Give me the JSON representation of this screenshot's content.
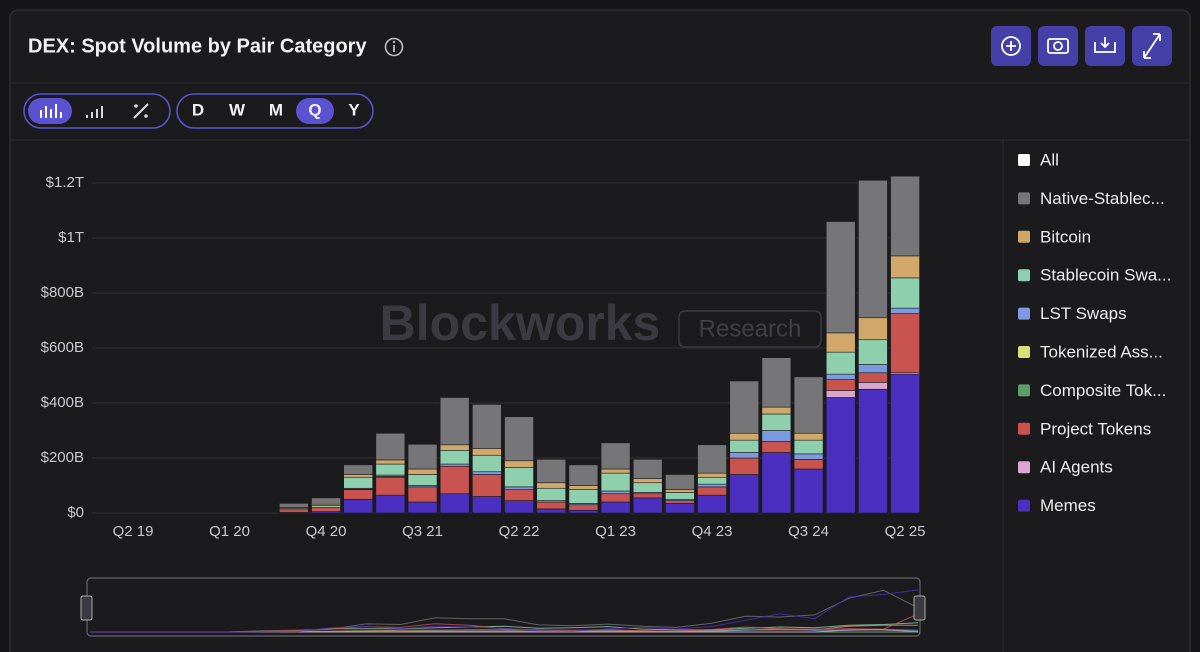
{
  "chart_data": {
    "type": "stacked_bar",
    "title": "DEX: Spot Volume by Pair Category",
    "watermark": [
      "Blockworks",
      "Research"
    ],
    "intervals": [
      "D",
      "W",
      "M",
      "Q",
      "Y"
    ],
    "selected_interval": "Q",
    "categories": [
      "Q2 19",
      null,
      null,
      "Q1 20",
      null,
      null,
      "Q4 20",
      null,
      null,
      "Q3 21",
      null,
      null,
      "Q2 22",
      null,
      null,
      "Q1 23",
      null,
      null,
      "Q4 23",
      null,
      null,
      "Q3 24",
      null,
      null,
      "Q2 25"
    ],
    "ylim": [
      0,
      1200
    ],
    "yticks": [
      {
        "value": 0,
        "label": "$0"
      },
      {
        "value": 200,
        "label": "$200B"
      },
      {
        "value": 400,
        "label": "$400B"
      },
      {
        "value": 600,
        "label": "$600B"
      },
      {
        "value": 800,
        "label": "$800B"
      },
      {
        "value": 1000,
        "label": "$1T"
      },
      {
        "value": 1200,
        "label": "$1.2T"
      }
    ],
    "grid": true,
    "legend": "right",
    "series": [
      {
        "name": "All",
        "color": "#ffffff",
        "values": [
          null,
          null,
          null,
          null,
          null,
          null,
          null,
          null,
          null,
          null,
          null,
          null,
          null,
          null,
          null,
          null,
          null,
          null,
          null,
          null,
          null,
          null,
          null,
          null,
          null
        ]
      },
      {
        "name": "Native-Stablec...",
        "color": "#767678",
        "values": [
          0,
          0,
          0,
          0,
          0,
          15,
          23,
          35,
          97,
          90,
          172,
          160,
          160,
          85,
          75,
          95,
          70,
          55,
          103,
          190,
          180,
          205,
          405,
          500,
          290
        ]
      },
      {
        "name": "Bitcoin",
        "color": "#d2a86a",
        "values": [
          0,
          0,
          0,
          0,
          0,
          3,
          4,
          10,
          15,
          20,
          20,
          25,
          25,
          20,
          15,
          15,
          15,
          10,
          15,
          25,
          25,
          25,
          70,
          80,
          80
        ]
      },
      {
        "name": "Stablecoin Swa...",
        "color": "#8ed0ad",
        "values": [
          0,
          0,
          0,
          0,
          0,
          5,
          8,
          40,
          40,
          40,
          50,
          60,
          70,
          45,
          50,
          65,
          35,
          25,
          25,
          45,
          60,
          50,
          80,
          90,
          110
        ]
      },
      {
        "name": "LST Swaps",
        "color": "#7b9ae0",
        "values": [
          0,
          0,
          0,
          0,
          0,
          0,
          0,
          3,
          5,
          5,
          8,
          10,
          10,
          5,
          5,
          10,
          5,
          5,
          10,
          20,
          40,
          20,
          20,
          30,
          20
        ]
      },
      {
        "name": "Tokenized Ass...",
        "color": "#d7df78",
        "values": [
          0,
          0,
          0,
          0,
          0,
          0,
          0,
          0,
          0,
          0,
          0,
          0,
          0,
          0,
          0,
          0,
          0,
          0,
          0,
          0,
          0,
          0,
          0,
          0,
          0
        ]
      },
      {
        "name": "Composite Tok...",
        "color": "#5c9d69",
        "values": [
          0,
          0,
          0,
          0,
          0,
          0,
          0,
          2,
          3,
          0,
          0,
          0,
          0,
          0,
          0,
          0,
          0,
          0,
          0,
          0,
          0,
          0,
          0,
          0,
          0
        ]
      },
      {
        "name": "Project Tokens",
        "color": "#c8534f",
        "values": [
          0,
          0,
          0,
          0,
          0,
          10,
          15,
          35,
          65,
          55,
          100,
          80,
          40,
          25,
          20,
          30,
          15,
          10,
          30,
          60,
          40,
          35,
          40,
          35,
          215
        ]
      },
      {
        "name": "AI Agents",
        "color": "#d8a6cf",
        "values": [
          0,
          0,
          0,
          0,
          0,
          0,
          0,
          0,
          0,
          0,
          0,
          0,
          0,
          0,
          0,
          0,
          0,
          0,
          0,
          0,
          0,
          0,
          25,
          25,
          5
        ]
      },
      {
        "name": "Memes",
        "color": "#4b2fc0",
        "values": [
          0,
          0,
          0,
          0,
          0,
          2,
          5,
          50,
          65,
          40,
          70,
          60,
          45,
          15,
          10,
          40,
          55,
          35,
          65,
          140,
          220,
          160,
          420,
          450,
          505
        ]
      }
    ]
  }
}
